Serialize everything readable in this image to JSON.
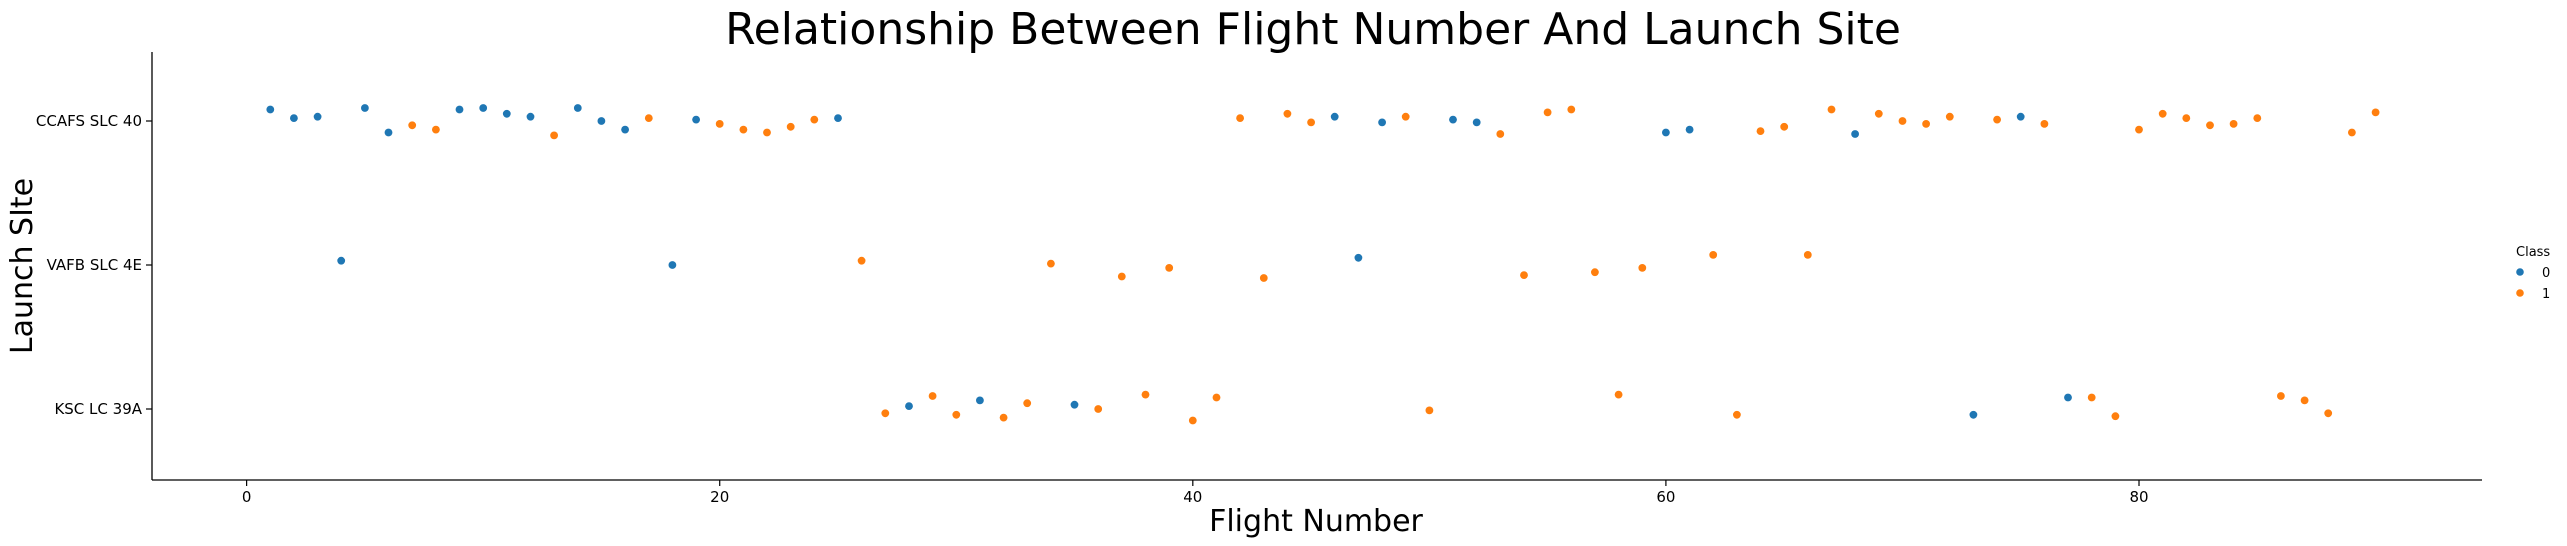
{
  "chart_data": {
    "type": "scatter",
    "title": "Relationship Between Flight Number And Launch Site",
    "xlabel": "Flight Number",
    "ylabel": "Launch SIte",
    "xlim": [
      -4,
      94.5
    ],
    "x_ticks": [
      0,
      20,
      40,
      60,
      80
    ],
    "categories": [
      "CCAFS SLC 40",
      "VAFB SLC 4E",
      "KSC LC 39A"
    ],
    "grid": false,
    "legend": {
      "title": "Class",
      "placement": "right",
      "entries": [
        {
          "label": "0",
          "color": "#1f77b4"
        },
        {
          "label": "1",
          "color": "#ff7f0e"
        }
      ]
    },
    "series": [
      {
        "name": "0",
        "color": "#1f77b4",
        "points": [
          {
            "x": 1,
            "y": "CCAFS SLC 40",
            "jitter": 0.08
          },
          {
            "x": 2,
            "y": "CCAFS SLC 40",
            "jitter": 0.02
          },
          {
            "x": 3,
            "y": "CCAFS SLC 40",
            "jitter": 0.03
          },
          {
            "x": 4,
            "y": "VAFB SLC 4E",
            "jitter": 0.03
          },
          {
            "x": 5,
            "y": "CCAFS SLC 40",
            "jitter": 0.09
          },
          {
            "x": 6,
            "y": "CCAFS SLC 40",
            "jitter": -0.08
          },
          {
            "x": 9,
            "y": "CCAFS SLC 40",
            "jitter": 0.08
          },
          {
            "x": 10,
            "y": "CCAFS SLC 40",
            "jitter": 0.09
          },
          {
            "x": 11,
            "y": "CCAFS SLC 40",
            "jitter": 0.05
          },
          {
            "x": 12,
            "y": "CCAFS SLC 40",
            "jitter": 0.03
          },
          {
            "x": 14,
            "y": "CCAFS SLC 40",
            "jitter": 0.09
          },
          {
            "x": 15,
            "y": "CCAFS SLC 40",
            "jitter": 0.0
          },
          {
            "x": 16,
            "y": "CCAFS SLC 40",
            "jitter": -0.06
          },
          {
            "x": 18,
            "y": "VAFB SLC 4E",
            "jitter": 0.0
          },
          {
            "x": 19,
            "y": "CCAFS SLC 40",
            "jitter": 0.01
          },
          {
            "x": 25,
            "y": "CCAFS SLC 40",
            "jitter": 0.02
          },
          {
            "x": 28,
            "y": "KSC LC 39A",
            "jitter": 0.02
          },
          {
            "x": 31,
            "y": "KSC LC 39A",
            "jitter": 0.06
          },
          {
            "x": 35,
            "y": "KSC LC 39A",
            "jitter": 0.03
          },
          {
            "x": 46,
            "y": "CCAFS SLC 40",
            "jitter": 0.03
          },
          {
            "x": 47,
            "y": "VAFB SLC 4E",
            "jitter": 0.05
          },
          {
            "x": 48,
            "y": "CCAFS SLC 40",
            "jitter": -0.01
          },
          {
            "x": 51,
            "y": "CCAFS SLC 40",
            "jitter": 0.01
          },
          {
            "x": 52,
            "y": "CCAFS SLC 40",
            "jitter": -0.01
          },
          {
            "x": 60,
            "y": "CCAFS SLC 40",
            "jitter": -0.08
          },
          {
            "x": 61,
            "y": "CCAFS SLC 40",
            "jitter": -0.06
          },
          {
            "x": 68,
            "y": "CCAFS SLC 40",
            "jitter": -0.09
          },
          {
            "x": 73,
            "y": "KSC LC 39A",
            "jitter": -0.04
          },
          {
            "x": 75,
            "y": "CCAFS SLC 40",
            "jitter": 0.03
          },
          {
            "x": 77,
            "y": "KSC LC 39A",
            "jitter": 0.08
          }
        ]
      },
      {
        "name": "1",
        "color": "#ff7f0e",
        "points": [
          {
            "x": 7,
            "y": "CCAFS SLC 40",
            "jitter": -0.03
          },
          {
            "x": 8,
            "y": "CCAFS SLC 40",
            "jitter": -0.06
          },
          {
            "x": 13,
            "y": "CCAFS SLC 40",
            "jitter": -0.1
          },
          {
            "x": 17,
            "y": "CCAFS SLC 40",
            "jitter": 0.02
          },
          {
            "x": 20,
            "y": "CCAFS SLC 40",
            "jitter": -0.02
          },
          {
            "x": 21,
            "y": "CCAFS SLC 40",
            "jitter": -0.06
          },
          {
            "x": 22,
            "y": "CCAFS SLC 40",
            "jitter": -0.08
          },
          {
            "x": 23,
            "y": "CCAFS SLC 40",
            "jitter": -0.04
          },
          {
            "x": 24,
            "y": "CCAFS SLC 40",
            "jitter": 0.01
          },
          {
            "x": 26,
            "y": "VAFB SLC 4E",
            "jitter": 0.03
          },
          {
            "x": 27,
            "y": "KSC LC 39A",
            "jitter": -0.03
          },
          {
            "x": 29,
            "y": "KSC LC 39A",
            "jitter": 0.09
          },
          {
            "x": 30,
            "y": "KSC LC 39A",
            "jitter": -0.04
          },
          {
            "x": 32,
            "y": "KSC LC 39A",
            "jitter": -0.06
          },
          {
            "x": 33,
            "y": "KSC LC 39A",
            "jitter": 0.04
          },
          {
            "x": 34,
            "y": "VAFB SLC 4E",
            "jitter": 0.01
          },
          {
            "x": 36,
            "y": "KSC LC 39A",
            "jitter": 0.0
          },
          {
            "x": 37,
            "y": "VAFB SLC 4E",
            "jitter": -0.08
          },
          {
            "x": 38,
            "y": "KSC LC 39A",
            "jitter": 0.1
          },
          {
            "x": 39,
            "y": "VAFB SLC 4E",
            "jitter": -0.02
          },
          {
            "x": 40,
            "y": "KSC LC 39A",
            "jitter": -0.08
          },
          {
            "x": 41,
            "y": "KSC LC 39A",
            "jitter": 0.08
          },
          {
            "x": 42,
            "y": "CCAFS SLC 40",
            "jitter": 0.02
          },
          {
            "x": 43,
            "y": "VAFB SLC 4E",
            "jitter": -0.09
          },
          {
            "x": 44,
            "y": "CCAFS SLC 40",
            "jitter": 0.05
          },
          {
            "x": 45,
            "y": "CCAFS SLC 40",
            "jitter": -0.01
          },
          {
            "x": 49,
            "y": "CCAFS SLC 40",
            "jitter": 0.03
          },
          {
            "x": 50,
            "y": "KSC LC 39A",
            "jitter": -0.01
          },
          {
            "x": 53,
            "y": "CCAFS SLC 40",
            "jitter": -0.09
          },
          {
            "x": 54,
            "y": "VAFB SLC 4E",
            "jitter": -0.07
          },
          {
            "x": 55,
            "y": "CCAFS SLC 40",
            "jitter": 0.06
          },
          {
            "x": 56,
            "y": "CCAFS SLC 40",
            "jitter": 0.08
          },
          {
            "x": 57,
            "y": "VAFB SLC 4E",
            "jitter": -0.05
          },
          {
            "x": 58,
            "y": "KSC LC 39A",
            "jitter": 0.1
          },
          {
            "x": 59,
            "y": "VAFB SLC 4E",
            "jitter": -0.02
          },
          {
            "x": 62,
            "y": "VAFB SLC 4E",
            "jitter": 0.07
          },
          {
            "x": 63,
            "y": "KSC LC 39A",
            "jitter": -0.04
          },
          {
            "x": 64,
            "y": "CCAFS SLC 40",
            "jitter": -0.07
          },
          {
            "x": 65,
            "y": "CCAFS SLC 40",
            "jitter": -0.04
          },
          {
            "x": 66,
            "y": "VAFB SLC 4E",
            "jitter": 0.07
          },
          {
            "x": 67,
            "y": "CCAFS SLC 40",
            "jitter": 0.08
          },
          {
            "x": 69,
            "y": "CCAFS SLC 40",
            "jitter": 0.05
          },
          {
            "x": 70,
            "y": "CCAFS SLC 40",
            "jitter": 0.0
          },
          {
            "x": 71,
            "y": "CCAFS SLC 40",
            "jitter": -0.02
          },
          {
            "x": 72,
            "y": "CCAFS SLC 40",
            "jitter": 0.03
          },
          {
            "x": 74,
            "y": "CCAFS SLC 40",
            "jitter": 0.01
          },
          {
            "x": 76,
            "y": "CCAFS SLC 40",
            "jitter": -0.02
          },
          {
            "x": 78,
            "y": "KSC LC 39A",
            "jitter": 0.08
          },
          {
            "x": 79,
            "y": "KSC LC 39A",
            "jitter": -0.05
          },
          {
            "x": 80,
            "y": "CCAFS SLC 40",
            "jitter": -0.06
          },
          {
            "x": 81,
            "y": "CCAFS SLC 40",
            "jitter": 0.05
          },
          {
            "x": 82,
            "y": "CCAFS SLC 40",
            "jitter": 0.02
          },
          {
            "x": 83,
            "y": "CCAFS SLC 40",
            "jitter": -0.03
          },
          {
            "x": 84,
            "y": "CCAFS SLC 40",
            "jitter": -0.02
          },
          {
            "x": 85,
            "y": "CCAFS SLC 40",
            "jitter": 0.02
          },
          {
            "x": 86,
            "y": "KSC LC 39A",
            "jitter": 0.09
          },
          {
            "x": 87,
            "y": "KSC LC 39A",
            "jitter": 0.06
          },
          {
            "x": 88,
            "y": "KSC LC 39A",
            "jitter": -0.03
          },
          {
            "x": 89,
            "y": "CCAFS SLC 40",
            "jitter": -0.08
          },
          {
            "x": 90,
            "y": "CCAFS SLC 40",
            "jitter": 0.06
          }
        ]
      }
    ]
  }
}
